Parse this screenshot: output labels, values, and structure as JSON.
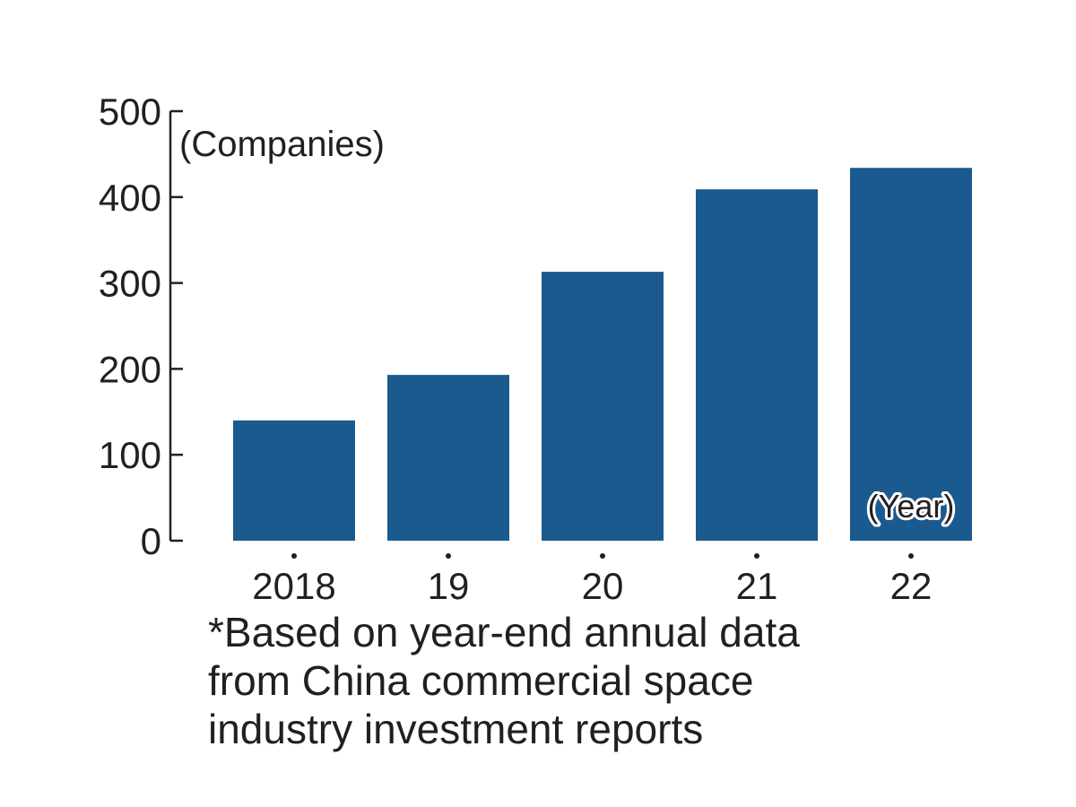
{
  "chart_data": {
    "type": "bar",
    "categories": [
      "2018",
      "19",
      "20",
      "21",
      "22"
    ],
    "values": [
      140,
      193,
      313,
      409,
      434
    ],
    "ylim": [
      0,
      500
    ],
    "yticks": [
      0,
      100,
      200,
      300,
      400,
      500
    ],
    "ylabel": "(Companies)",
    "xlabel": "(Year)",
    "bar_color": "#1b5a8e",
    "grid": false,
    "legend": "none"
  },
  "footnote": {
    "lines": [
      "*Based on year-end annual data",
      "from China commercial space",
      "industry investment reports"
    ]
  }
}
